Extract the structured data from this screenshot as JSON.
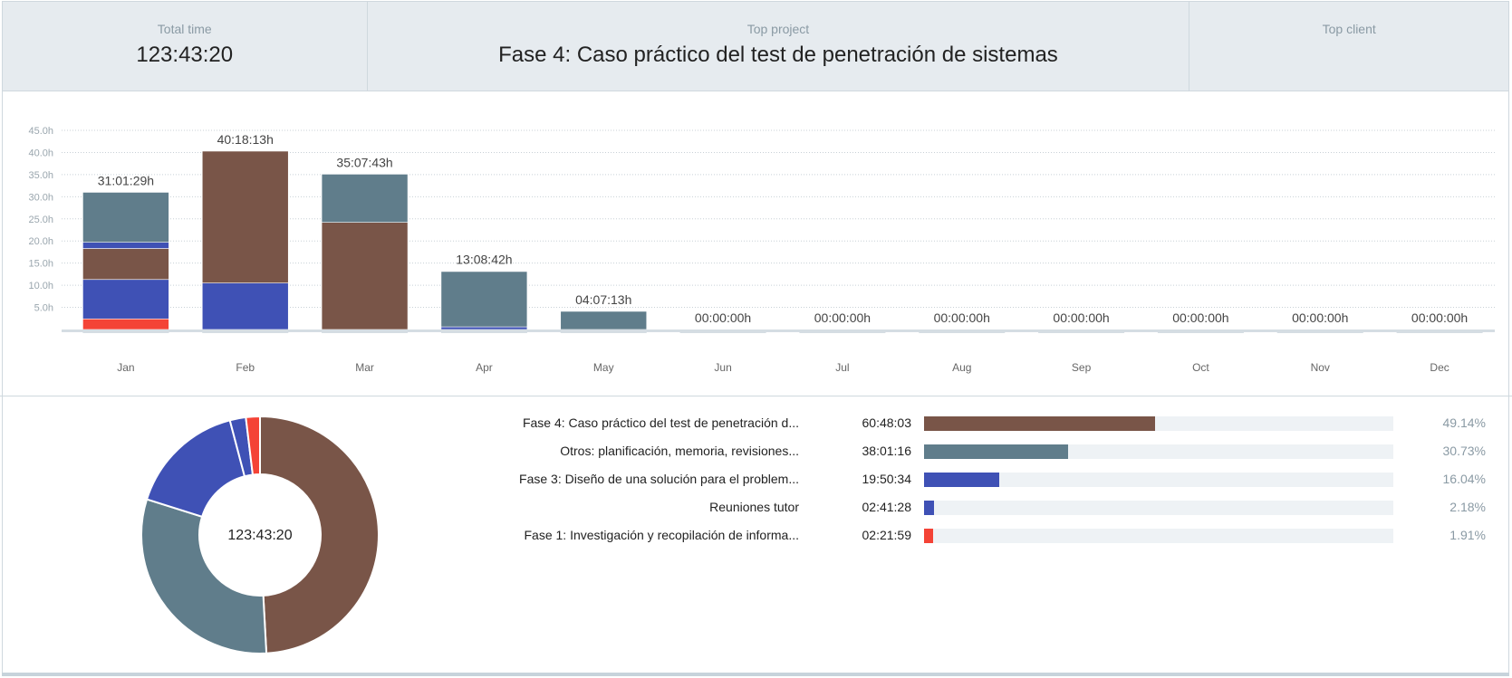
{
  "summary": {
    "total_time_label": "Total time",
    "total_time_value": "123:43:20",
    "top_project_label": "Top project",
    "top_project_value": "Fase 4: Caso práctico del test de penetración de sistemas",
    "top_client_label": "Top client",
    "top_client_value": ""
  },
  "colors": {
    "fase4": "#795548",
    "otros": "#607d8b",
    "fase3": "#3f51b5",
    "reuniones": "#3f51b5",
    "fase1": "#f44336",
    "grid": "#c8d0d6",
    "axis": "#d5dde3"
  },
  "chart_data": {
    "type": "bar",
    "stacked": true,
    "categories": [
      "Jan",
      "Feb",
      "Mar",
      "Apr",
      "May",
      "Jun",
      "Jul",
      "Aug",
      "Sep",
      "Oct",
      "Nov",
      "Dec"
    ],
    "totals_labels": [
      "31:01:29h",
      "40:18:13h",
      "35:07:43h",
      "13:08:42h",
      "04:07:13h",
      "00:00:00h",
      "00:00:00h",
      "00:00:00h",
      "00:00:00h",
      "00:00:00h",
      "00:00:00h",
      "00:00:00h"
    ],
    "totals_hours": [
      31.02,
      40.3,
      35.13,
      13.15,
      4.12,
      0,
      0,
      0,
      0,
      0,
      0,
      0
    ],
    "ylim": [
      0,
      45
    ],
    "yticks": [
      "5.0h",
      "10.0h",
      "15.0h",
      "20.0h",
      "25.0h",
      "30.0h",
      "35.0h",
      "40.0h",
      "45.0h"
    ],
    "ytick_values": [
      5,
      10,
      15,
      20,
      25,
      30,
      35,
      40,
      45
    ],
    "grid": true,
    "series": [
      {
        "key": "fase1",
        "color": "#f44336",
        "values": [
          2.4,
          0,
          0,
          0,
          0,
          0,
          0,
          0,
          0,
          0,
          0,
          0
        ]
      },
      {
        "key": "fase3",
        "color": "#3f51b5",
        "values": [
          8.9,
          10.5,
          0,
          0.6,
          0,
          0,
          0,
          0,
          0,
          0,
          0,
          0
        ]
      },
      {
        "key": "fase4",
        "color": "#795548",
        "values": [
          7.0,
          29.8,
          24.2,
          0,
          0,
          0,
          0,
          0,
          0,
          0,
          0,
          0
        ]
      },
      {
        "key": "reuniones",
        "color": "#3f51b5",
        "values": [
          1.4,
          0,
          0,
          0,
          0,
          0,
          0,
          0,
          0,
          0,
          0,
          0
        ]
      },
      {
        "key": "otros",
        "color": "#607d8b",
        "values": [
          11.3,
          0,
          10.9,
          12.5,
          4.1,
          0,
          0,
          0,
          0,
          0,
          0,
          0
        ]
      }
    ]
  },
  "donut": {
    "center_label": "123:43:20",
    "slices": [
      {
        "key": "fase4",
        "percent": 49.14,
        "color": "#795548"
      },
      {
        "key": "otros",
        "percent": 30.73,
        "color": "#607d8b"
      },
      {
        "key": "fase3",
        "percent": 16.04,
        "color": "#3f51b5"
      },
      {
        "key": "reuniones",
        "percent": 2.18,
        "color": "#3f51b5"
      },
      {
        "key": "fase1",
        "percent": 1.91,
        "color": "#f44336"
      }
    ]
  },
  "projects": [
    {
      "name": "Fase 4: Caso práctico del test de penetración d...",
      "time": "60:48:03",
      "percent_label": "49.14%",
      "fraction": 0.4914,
      "color": "#795548"
    },
    {
      "name": "Otros: planificación, memoria, revisiones...",
      "time": "38:01:16",
      "percent_label": "30.73%",
      "fraction": 0.3073,
      "color": "#607d8b"
    },
    {
      "name": "Fase 3: Diseño de una solución para el problem...",
      "time": "19:50:34",
      "percent_label": "16.04%",
      "fraction": 0.1604,
      "color": "#3f51b5"
    },
    {
      "name": "Reuniones tutor",
      "time": "02:41:28",
      "percent_label": "2.18%",
      "fraction": 0.0218,
      "color": "#3f51b5"
    },
    {
      "name": "Fase 1: Investigación y recopilación de informa...",
      "time": "02:21:59",
      "percent_label": "1.91%",
      "fraction": 0.0191,
      "color": "#f44336"
    }
  ]
}
